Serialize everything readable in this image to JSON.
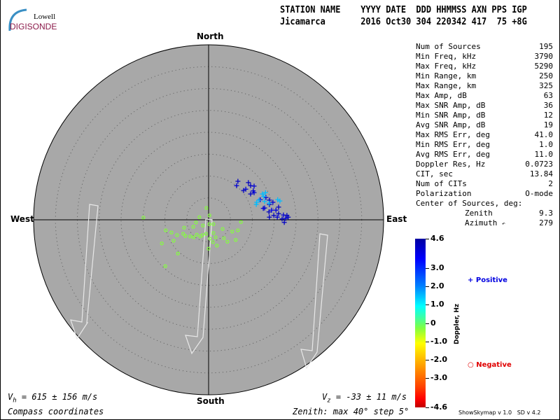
{
  "logo": {
    "line1": "Lowell",
    "line2": "DIGISONDE"
  },
  "header": {
    "labels": "STATION NAME    YYYY DATE  DDD HHMMSS AXN PPS IGP",
    "values": "Jicamarca       2016 Oct30 304 220342 417  75 +8G"
  },
  "stats": [
    {
      "label": "Num of Sources",
      "value": "195"
    },
    {
      "label": "Min Freq, kHz",
      "value": "3790"
    },
    {
      "label": "Max Freq, kHz",
      "value": "5290"
    },
    {
      "label": "Min Range, km",
      "value": "250"
    },
    {
      "label": "Max Range, km",
      "value": "325"
    },
    {
      "label": "Max Amp, dB",
      "value": "63"
    },
    {
      "label": "Max SNR Amp, dB",
      "value": "36"
    },
    {
      "label": "Min SNR Amp, dB",
      "value": "12"
    },
    {
      "label": "Avg SNR Amp, dB",
      "value": "19"
    },
    {
      "label": "Max RMS Err, deg",
      "value": "41.0"
    },
    {
      "label": "Min RMS Err, deg",
      "value": "1.0"
    },
    {
      "label": "Avg RMS Err, deg",
      "value": "11.0"
    },
    {
      "label": "Doppler Res, Hz",
      "value": "0.0723"
    },
    {
      "label": "CIT, sec",
      "value": "13.84"
    },
    {
      "label": "Num of CITs",
      "value": "2"
    },
    {
      "label": "Polarization",
      "value": "O-mode"
    }
  ],
  "center": {
    "title": "Center of Sources, deg:",
    "zenith_label": "Zenith",
    "zenith": "9.3",
    "azimuth_label": "Azimuth",
    "azimuth": "279"
  },
  "directions": {
    "north": "North",
    "south": "South",
    "east": "East",
    "west": "West"
  },
  "footer": {
    "vh": "= 615 ± 156 m/s",
    "vz": "= -33 ± 11 m/s",
    "coords": "Compass coordinates",
    "zenith": "Zenith: max 40°  step 5°",
    "version": "ShowSkymap v 1.0   SD v 4.2"
  },
  "colorbar": {
    "label": "Doppler, Hz",
    "range": [
      -4.6,
      4.6
    ],
    "ticks": [
      "4.6",
      "3.0",
      "2.0",
      "1.0",
      "0",
      "-1.0",
      "-2.0",
      "-3.0",
      "-4.6"
    ]
  },
  "legend": {
    "positive": "Positive",
    "negative": "Negative",
    "positive_color": "#0000e0",
    "negative_color": "#e00000"
  },
  "colors": {
    "disc": "#a8a8a8"
  },
  "chart_data": {
    "type": "scatter",
    "zenith_max_deg": 40,
    "ring_step_deg": 5,
    "note_units": "[east_deg, north_deg, doppler_Hz]",
    "points": [
      [
        6.7,
        8.8,
        4.2
      ],
      [
        9.1,
        8.5,
        4.2
      ],
      [
        8.5,
        7.0,
        4.0
      ],
      [
        9.6,
        7.8,
        4.2
      ],
      [
        10.4,
        7.7,
        4.0
      ],
      [
        10.2,
        6.6,
        4.0
      ],
      [
        9.6,
        5.9,
        4.2
      ],
      [
        10.4,
        6.2,
        4.0
      ],
      [
        8.0,
        6.7,
        4.2
      ],
      [
        11.8,
        4.6,
        3.8
      ],
      [
        13.1,
        5.1,
        4.0
      ],
      [
        13.9,
        4.5,
        4.2
      ],
      [
        14.7,
        4.0,
        4.0
      ],
      [
        13.9,
        3.5,
        4.2
      ],
      [
        12.8,
        2.7,
        4.0
      ],
      [
        14.4,
        2.2,
        3.8
      ],
      [
        13.8,
        1.8,
        4.2
      ],
      [
        15.4,
        2.2,
        4.0
      ],
      [
        16.0,
        2.9,
        4.2
      ],
      [
        16.0,
        1.4,
        4.2
      ],
      [
        17.1,
        1.1,
        4.0
      ],
      [
        17.9,
        1.0,
        4.2
      ],
      [
        18.2,
        0.6,
        4.2
      ],
      [
        17.6,
        0.3,
        4.0
      ],
      [
        16.8,
        0.2,
        4.2
      ],
      [
        15.7,
        0.6,
        4.0
      ],
      [
        14.9,
        1.0,
        4.2
      ],
      [
        17.3,
        -0.6,
        4.2
      ],
      [
        12.5,
        2.6,
        4.0
      ],
      [
        13.9,
        0.6,
        4.2
      ],
      [
        6.4,
        7.8,
        4.0
      ],
      [
        12.3,
        5.9,
        1.5
      ],
      [
        13.0,
        6.2,
        1.5
      ],
      [
        12.6,
        5.3,
        1.5
      ],
      [
        11.0,
        4.0,
        1.5
      ],
      [
        11.5,
        4.5,
        1.5
      ],
      [
        12.8,
        4.2,
        1.5
      ],
      [
        13.8,
        3.8,
        1.5
      ],
      [
        15.8,
        4.6,
        1.5
      ],
      [
        16.3,
        4.3,
        1.5
      ],
      [
        10.9,
        3.5,
        1.5
      ],
      [
        -14.9,
        0.5,
        -0.3
      ],
      [
        -9.8,
        -2.4,
        -0.3
      ],
      [
        -8.5,
        -2.9,
        -0.3
      ],
      [
        -8.0,
        -4.8,
        -0.3
      ],
      [
        -7.2,
        -3.5,
        -0.3
      ],
      [
        -5.8,
        -3.2,
        -0.3
      ],
      [
        -5.3,
        -3.7,
        -0.3
      ],
      [
        -4.2,
        -3.8,
        -0.3
      ],
      [
        -3.4,
        -4.0,
        -0.3
      ],
      [
        -2.7,
        -3.4,
        -0.3
      ],
      [
        -1.9,
        -3.8,
        -0.3
      ],
      [
        -1.4,
        -3.5,
        -0.3
      ],
      [
        -0.6,
        -3.2,
        -0.3
      ],
      [
        0.3,
        -4.3,
        -0.3
      ],
      [
        1.1,
        -3.0,
        -0.3
      ],
      [
        -0.5,
        2.7,
        -0.3
      ],
      [
        0.2,
        -1.0,
        -0.3
      ],
      [
        1.1,
        -1.0,
        -0.3
      ],
      [
        3.2,
        -2.1,
        -0.3
      ],
      [
        5.4,
        -2.7,
        -0.3
      ],
      [
        6.2,
        -4.6,
        -0.3
      ],
      [
        6.7,
        -2.4,
        -0.3
      ],
      [
        7.4,
        -0.5,
        -0.3
      ],
      [
        1.0,
        -5.1,
        -0.3
      ],
      [
        -3.5,
        -1.6,
        -0.3
      ],
      [
        -1.3,
        -1.3,
        -0.3
      ],
      [
        -5.6,
        -1.8,
        -0.3
      ],
      [
        -10.7,
        -5.4,
        -0.3
      ],
      [
        -7.0,
        -7.7,
        -0.3
      ],
      [
        -9.9,
        -10.6,
        -0.3
      ],
      [
        1.9,
        -5.9,
        -0.3
      ],
      [
        4.3,
        -5.0,
        -0.3
      ],
      [
        1.6,
        -4.0,
        -0.3
      ],
      [
        -2.1,
        0.6,
        -0.3
      ],
      [
        -2.9,
        -0.6,
        -0.3
      ],
      [
        0.2,
        1.0,
        -0.3
      ],
      [
        3.5,
        -4.2,
        -0.3
      ],
      [
        0,
        -6.6,
        -0.3
      ]
    ]
  }
}
